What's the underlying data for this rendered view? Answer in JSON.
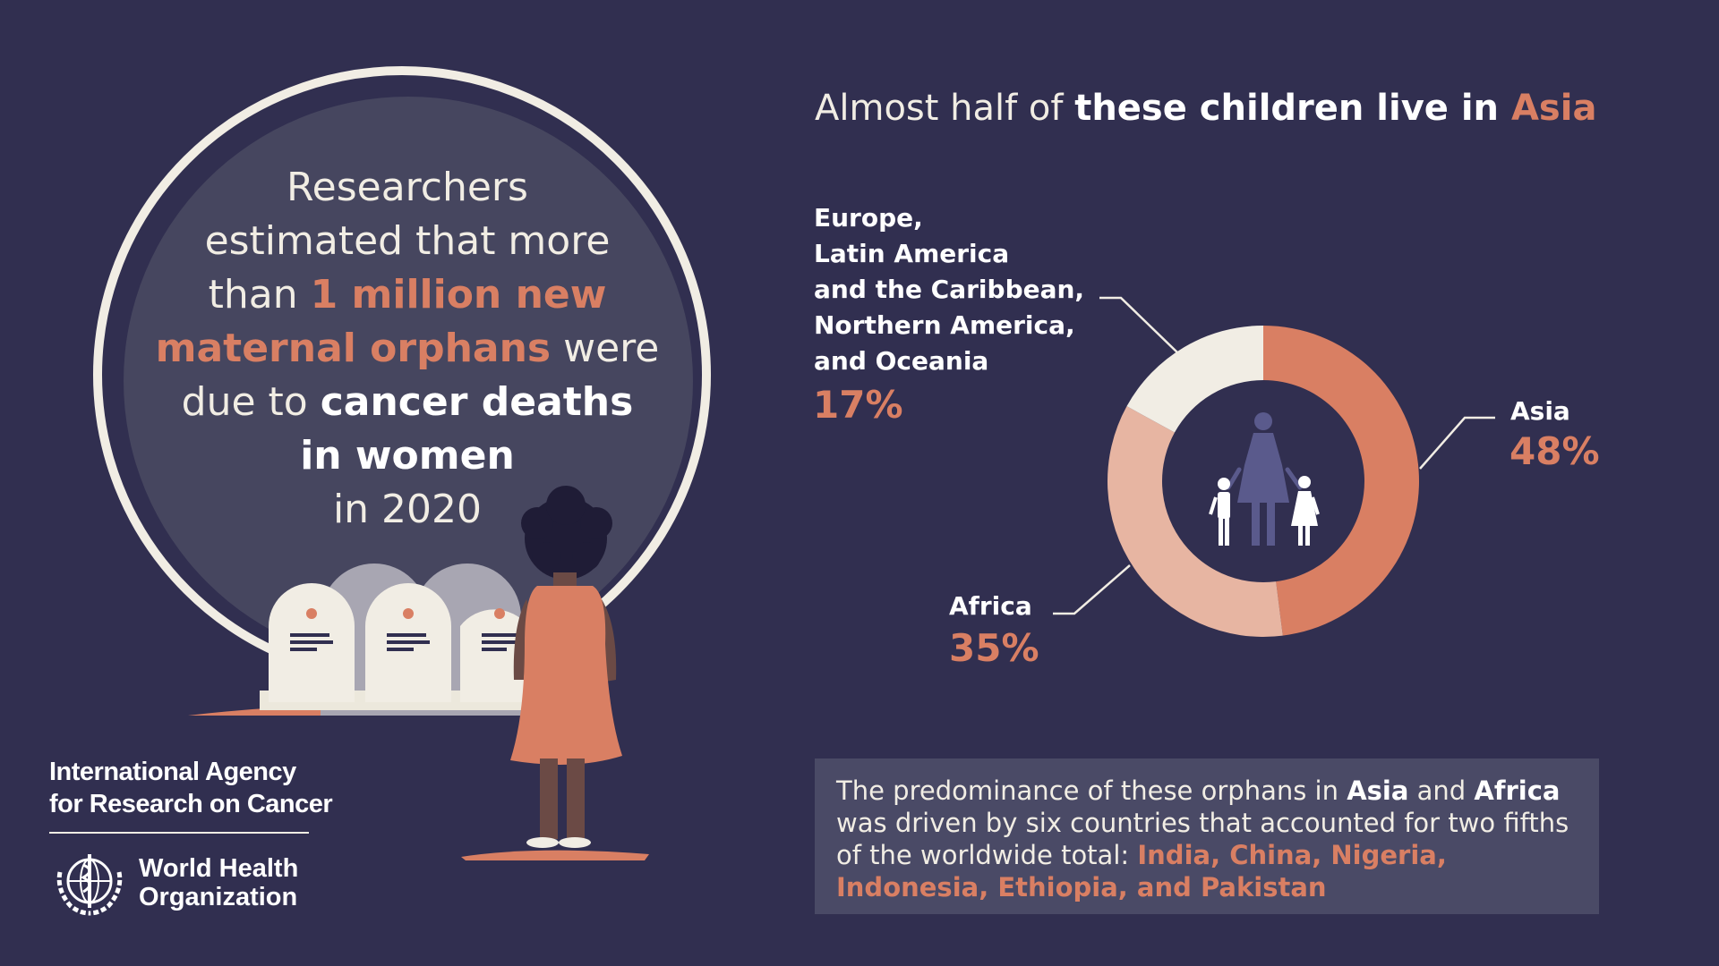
{
  "headline": {
    "line1": "Researchers",
    "line2": "estimated that more",
    "than": "than ",
    "highlight1": "1 million new",
    "highlight2": "maternal orphans",
    "were": " were",
    "due_to": "due to ",
    "bold1": "cancer deaths",
    "bold2": "in women",
    "year": "in 2020"
  },
  "chart_data": {
    "type": "pie",
    "title": "Almost half of these children live in Asia",
    "title_parts": {
      "plain": "Almost half of ",
      "bold": "these children live in ",
      "accent": "Asia"
    },
    "donut": true,
    "slices": [
      {
        "label": "Asia",
        "value": 48,
        "display": "48%",
        "color": "#d97f63"
      },
      {
        "label": "Africa",
        "value": 35,
        "display": "35%",
        "color": "#e7b5a2"
      },
      {
        "label": "Europe, Latin America and the Caribbean, Northern America, and Oceania",
        "value": 17,
        "display": "17%",
        "color": "#f1ede4"
      }
    ],
    "other_label_lines": [
      "Europe,",
      "Latin America",
      "and the Caribbean,",
      "Northern America,",
      "and Oceania"
    ]
  },
  "note": {
    "t1": "The predominance of these orphans in ",
    "asia": "Asia",
    "and": " and ",
    "africa": "Africa",
    "t2": " was driven by six countries that accounted for two fifths of the worldwide total: ",
    "countries": "India, China, Nigeria, Indonesia, Ethiopia, and Pakistan"
  },
  "logos": {
    "iarc_line1": "International Agency",
    "iarc_line2": "for Research on Cancer",
    "who_line1": "World Health",
    "who_line2": "Organization"
  },
  "colors": {
    "background": "#312f50",
    "accent": "#d97f63",
    "light": "#f1ede4",
    "africa": "#e7b5a2",
    "family_icon": "#5a5a8c"
  }
}
